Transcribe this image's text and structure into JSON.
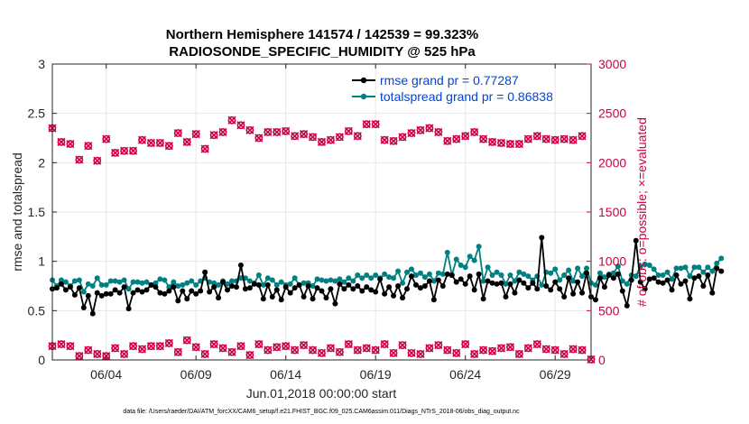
{
  "chart_data": {
    "type": "line",
    "title_line1": "Northern Hemisphere 141574 / 142539 = 99.323%",
    "title_line2": "RADIOSONDE_SPECIFIC_HUMIDITY @ 525 hPa",
    "xlabel": "Jun.01,2018 00:00:00 start",
    "ylabel_left": "rmse and totalspread",
    "ylabel_right": "# of obs: o=possible; ×=evaluated",
    "footer": "data file: /Users/raeder/DAI/ATM_forcXX/CAM6_setup/f.e21.FHIST_BGC.f09_025.CAM6assim.011/Diags_NTrS_2018-06/obs_diag_output.nc",
    "x_ticks": [
      "06/04",
      "06/09",
      "06/14",
      "06/19",
      "06/24",
      "06/29"
    ],
    "x_tick_days": [
      4,
      9,
      14,
      19,
      24,
      29
    ],
    "xlim": [
      1,
      31
    ],
    "ylim_left": [
      0,
      3
    ],
    "y_ticks_left": [
      "0",
      "0.5",
      "1",
      "1.5",
      "2",
      "2.5",
      "3"
    ],
    "ylim_right": [
      0,
      3000
    ],
    "y_ticks_right": [
      "0",
      "500",
      "1000",
      "1500",
      "2000",
      "2500",
      "3000"
    ],
    "grid": true,
    "legend_position": "top-right",
    "colors": {
      "rmse": "#000000",
      "spread": "#008080",
      "obs": "#cc0044",
      "axis_left": "#262626",
      "axis_right": "#cc0044",
      "legend_text": "#0044dd"
    },
    "series": [
      {
        "name": "rmse grand pr = 0.77287",
        "x_start": 1,
        "x_step": 0.25,
        "values": [
          0.72,
          0.73,
          0.77,
          0.71,
          0.74,
          0.66,
          0.73,
          0.53,
          0.65,
          0.47,
          0.68,
          0.65,
          0.67,
          0.67,
          0.71,
          0.68,
          0.74,
          0.52,
          0.68,
          0.71,
          0.69,
          0.71,
          0.76,
          0.74,
          0.68,
          0.67,
          0.7,
          0.74,
          0.6,
          0.7,
          0.62,
          0.7,
          0.67,
          0.7,
          0.89,
          0.69,
          0.74,
          0.63,
          0.79,
          0.71,
          0.75,
          0.74,
          0.96,
          0.72,
          0.73,
          0.77,
          0.76,
          0.62,
          0.76,
          0.64,
          0.71,
          0.61,
          0.74,
          0.68,
          0.73,
          0.76,
          0.64,
          0.75,
          0.62,
          0.73,
          0.7,
          0.63,
          0.72,
          0.57,
          0.77,
          0.72,
          0.76,
          0.72,
          0.75,
          0.7,
          0.74,
          0.71,
          0.69,
          0.82,
          0.67,
          0.74,
          0.65,
          0.75,
          0.63,
          0.72,
          0.85,
          0.76,
          0.73,
          0.75,
          0.8,
          0.61,
          0.81,
          0.75,
          0.87,
          0.86,
          0.79,
          0.82,
          0.77,
          0.85,
          0.71,
          0.87,
          0.62,
          0.8,
          0.78,
          0.77,
          0.78,
          0.64,
          0.77,
          0.68,
          0.81,
          0.78,
          0.73,
          0.78,
          0.72,
          1.24,
          0.75,
          0.71,
          0.79,
          0.72,
          0.64,
          0.83,
          0.67,
          0.79,
          0.68,
          0.88,
          0.64,
          0.61,
          0.83,
          0.74,
          0.86,
          0.83,
          0.87,
          0.7,
          0.55,
          0.81,
          1.21,
          0.79,
          0.72,
          0.82,
          0.83,
          0.79,
          0.78,
          0.81,
          0.71,
          0.86,
          0.77,
          0.8,
          0.62,
          0.83,
          0.85,
          0.75,
          0.86,
          0.68,
          0.93,
          0.9
        ]
      },
      {
        "name": "totalspread grand pr = 0.86838",
        "x_start": 1,
        "x_step": 0.25,
        "values": [
          0.81,
          0.75,
          0.81,
          0.79,
          0.75,
          0.8,
          0.81,
          0.69,
          0.77,
          0.75,
          0.83,
          0.76,
          0.76,
          0.8,
          0.8,
          0.79,
          0.81,
          0.72,
          0.79,
          0.79,
          0.78,
          0.79,
          0.76,
          0.78,
          0.82,
          0.81,
          0.74,
          0.79,
          0.75,
          0.76,
          0.78,
          0.8,
          0.76,
          0.8,
          0.83,
          0.79,
          0.78,
          0.76,
          0.8,
          0.77,
          0.8,
          0.8,
          0.83,
          0.83,
          0.8,
          0.78,
          0.86,
          0.76,
          0.83,
          0.81,
          0.76,
          0.79,
          0.76,
          0.77,
          0.83,
          0.76,
          0.78,
          0.78,
          0.75,
          0.82,
          0.81,
          0.8,
          0.81,
          0.8,
          0.82,
          0.79,
          0.83,
          0.8,
          0.86,
          0.83,
          0.86,
          0.83,
          0.86,
          0.83,
          0.87,
          0.84,
          0.83,
          0.9,
          0.78,
          0.89,
          0.92,
          0.86,
          0.88,
          0.84,
          0.87,
          0.8,
          0.88,
          0.87,
          1.09,
          0.86,
          1.02,
          0.96,
          0.94,
          1.05,
          1.01,
          1.15,
          0.8,
          0.94,
          0.86,
          0.89,
          0.86,
          0.77,
          0.86,
          0.8,
          0.89,
          0.87,
          0.85,
          0.81,
          0.85,
          0.76,
          0.89,
          0.88,
          0.92,
          0.81,
          0.86,
          0.91,
          0.8,
          0.93,
          0.85,
          0.93,
          0.78,
          0.76,
          0.88,
          0.84,
          0.87,
          0.88,
          0.95,
          0.8,
          0.77,
          0.86,
          0.85,
          0.95,
          0.97,
          0.96,
          0.92,
          0.86,
          0.86,
          0.89,
          0.82,
          0.93,
          0.93,
          0.94,
          0.85,
          0.94,
          0.94,
          0.89,
          0.94,
          0.9,
          0.98,
          1.03
        ]
      }
    ],
    "obs_possible": {
      "x_days": [
        1,
        1.5,
        2,
        2.5,
        3,
        3.5,
        4,
        4.5,
        5,
        5.5,
        6,
        6.5,
        7,
        7.5,
        8,
        8.5,
        9,
        9.5,
        10,
        10.5,
        11,
        11.5,
        12,
        12.5,
        13,
        13.5,
        14,
        14.5,
        15,
        15.5,
        16,
        16.5,
        17,
        17.5,
        18,
        18.5,
        19,
        19.5,
        20,
        20.5,
        21,
        21.5,
        22,
        22.5,
        23,
        23.5,
        24,
        24.5,
        25,
        25.5,
        26,
        26.5,
        27,
        27.5,
        28,
        28.5,
        29,
        29.5,
        30,
        30.5
      ],
      "values": [
        2350,
        2210,
        2190,
        2030,
        2170,
        2020,
        2240,
        2100,
        2120,
        2120,
        2230,
        2200,
        2200,
        2170,
        2300,
        2210,
        2290,
        2140,
        2280,
        2310,
        2430,
        2380,
        2330,
        2250,
        2310,
        2310,
        2320,
        2270,
        2290,
        2260,
        2210,
        2230,
        2260,
        2320,
        2270,
        2390,
        2390,
        2230,
        2220,
        2260,
        2300,
        2330,
        2350,
        2310,
        2220,
        2240,
        2270,
        2310,
        2240,
        2210,
        2200,
        2190,
        2190,
        2240,
        2270,
        2240,
        2230,
        2240,
        2230,
        2270
      ]
    },
    "obs_evaluated": {
      "x_days": [
        1,
        1.5,
        2,
        2.5,
        3,
        3.5,
        4,
        4.5,
        5,
        5.5,
        6,
        6.5,
        7,
        7.5,
        8,
        8.5,
        9,
        9.5,
        10,
        10.5,
        11,
        11.5,
        12,
        12.5,
        13,
        13.5,
        14,
        14.5,
        15,
        15.5,
        16,
        16.5,
        17,
        17.5,
        18,
        18.5,
        19,
        19.5,
        20,
        20.5,
        21,
        21.5,
        22,
        22.5,
        23,
        23.5,
        24,
        24.5,
        25,
        25.5,
        26,
        26.5,
        27,
        27.5,
        28,
        28.5,
        29,
        29.5,
        30,
        30.5,
        31
      ],
      "values": [
        140,
        160,
        140,
        40,
        100,
        60,
        40,
        120,
        60,
        140,
        110,
        140,
        140,
        170,
        80,
        200,
        130,
        60,
        160,
        120,
        80,
        140,
        50,
        160,
        100,
        130,
        140,
        100,
        150,
        100,
        70,
        120,
        80,
        160,
        100,
        120,
        100,
        160,
        70,
        150,
        70,
        60,
        120,
        150,
        100,
        70,
        160,
        60,
        100,
        90,
        120,
        130,
        60,
        120,
        160,
        110,
        100,
        60,
        110,
        100,
        5
      ]
    }
  }
}
